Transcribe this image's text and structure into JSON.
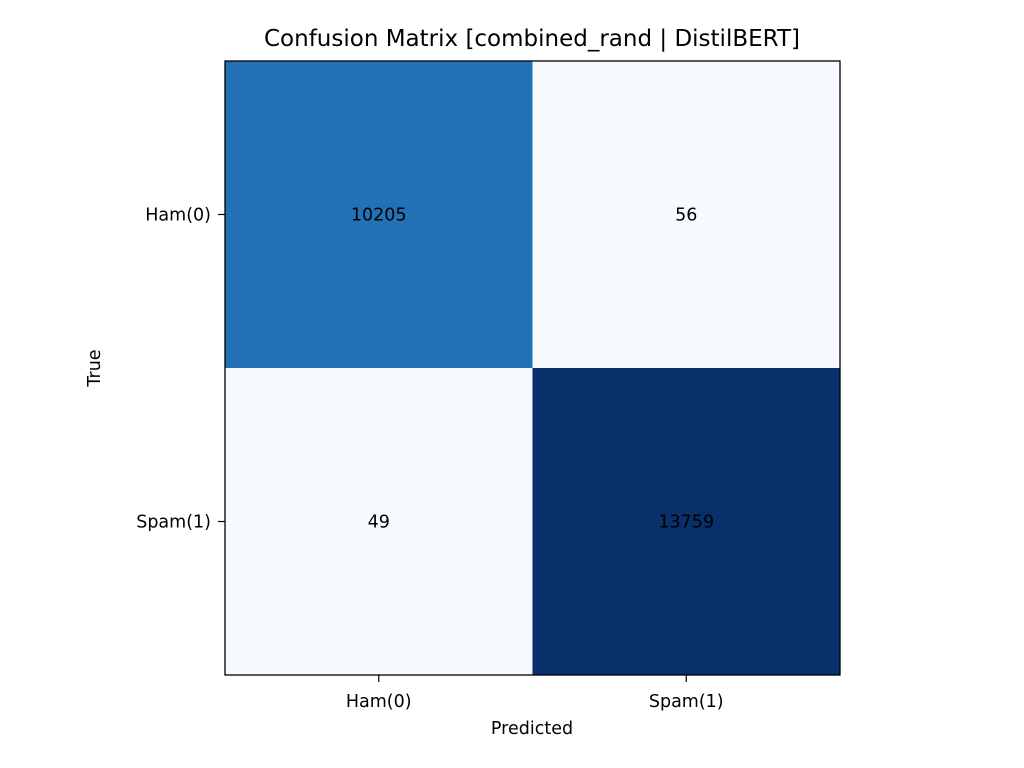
{
  "chart_data": {
    "type": "heatmap",
    "title": "Confusion Matrix [combined_rand | DistilBERT]",
    "xlabel": "Predicted",
    "ylabel": "True",
    "x_categories": [
      "Ham(0)",
      "Spam(1)"
    ],
    "y_categories": [
      "Ham(0)",
      "Spam(1)"
    ],
    "values": [
      [
        10205,
        56
      ],
      [
        49,
        13759
      ]
    ],
    "colormap": "Blues",
    "color_low": "#f7fbff",
    "color_mid": "#2372b7",
    "color_high": "#08306b",
    "text_color_light": "#000000",
    "text_color_dark": "#000000",
    "grid": false,
    "legend": "none"
  }
}
